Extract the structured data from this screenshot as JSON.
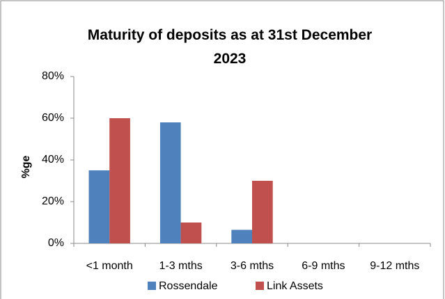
{
  "chart_data": {
    "type": "bar",
    "title": "Maturity of deposits as at 31st December 2023",
    "ylabel": "%ge",
    "categories": [
      "<1 month",
      "1-3 mths",
      "3-6 mths",
      "6-9 mths",
      "9-12 mths"
    ],
    "series": [
      {
        "name": "Rossendale",
        "color": "#4f81bd",
        "values": [
          35,
          58,
          6.5,
          0,
          0
        ]
      },
      {
        "name": "Link Assets",
        "color": "#c0504d",
        "values": [
          60,
          10,
          30,
          0,
          0
        ]
      }
    ],
    "ylim": [
      0,
      80
    ],
    "yticks": [
      {
        "value": 0,
        "label": "0%"
      },
      {
        "value": 20,
        "label": "20%"
      },
      {
        "value": 40,
        "label": "40%"
      },
      {
        "value": 60,
        "label": "60%"
      },
      {
        "value": 80,
        "label": "80%"
      }
    ],
    "grid": false,
    "legend": "bottom"
  }
}
